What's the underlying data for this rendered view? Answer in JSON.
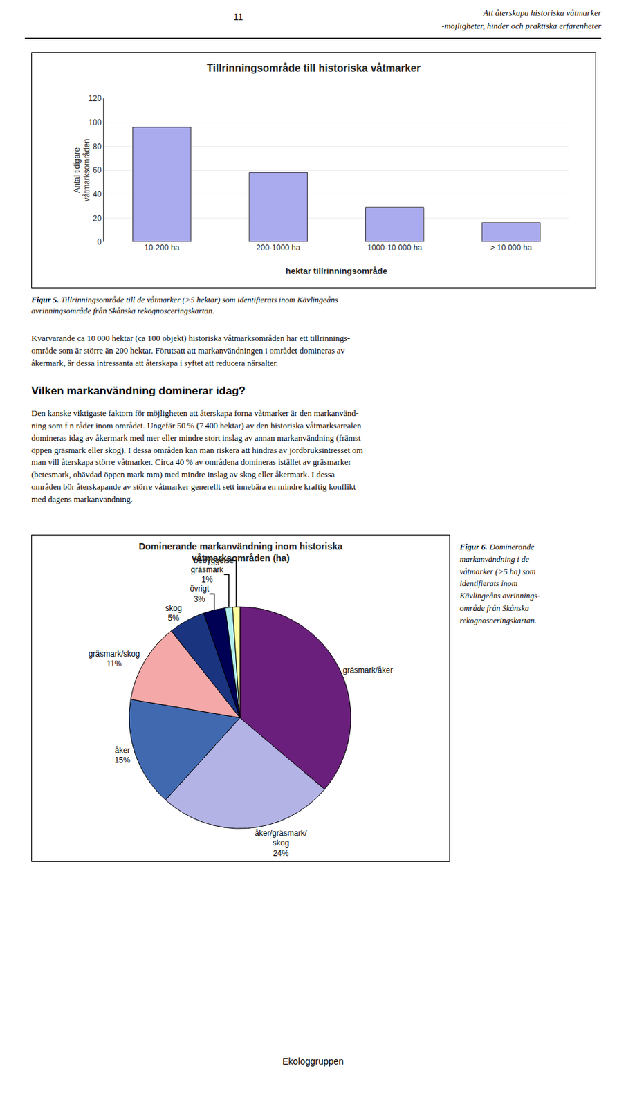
{
  "page_number": "11",
  "header_title": "Att återskapa historiska våtmarker",
  "header_subtitle": "-möjligheter, hinder och praktiska erfarenheter",
  "captions": [
    {
      "label": "Figur 5.",
      "text": "Tillrinningsområde till de våtmarker (>5 hektar) som identifierats inom Kävlingeåns\navrinningsområde från Skånska rekognosceringskartan."
    },
    {
      "label": "Figur 6.",
      "text": "Dominerande\nmarkanvändning i de\nvåtmarker (>5 ha) som\nidentifierats inom\nKävlingeåns avrinnings-\nområde från Skånska\nrekognosceringskartan."
    }
  ],
  "body_texts": [
    "Kvarvarande ca 10 000 hektar (ca 100 objekt) historiska våtmarksområden har ett tillrinnings-\nområde som är större än 200 hektar. Förutsatt att markanvändningen i området domineras av\nåkermark, är dessa intressanta att återskapa i syftet att reducera närsalter.",
    "Den kanske viktigaste faktorn för möjligheten att återskapa forna våtmarker är den markanvänd-\nning som f n råder inom området. Ungefär 50 % (7 400 hektar) av den historiska våtmarksarealen\ndomineras idag av åkermark med mer eller mindre stort inslag av annan markanvändning (främst\nöppen gräsmark eller skog). I dessa områden kan man riskera att hindras av jordbruksintresset om\nman vill återskapa större våtmarker. Circa 40 % av områdena domineras istället av gräsmarker\n(betesmark, ohävdad öppen mark mm) med mindre inslag av skog eller åkermark. I dessa\nområden bör återskapande av större våtmarker generellt sett innebära en mindre kraftig konflikt\nmed dagens markanvändning."
  ],
  "section_title": "Vilken markanvändning dominerar idag?",
  "footer": "Ekologgruppen",
  "chart_data": [
    {
      "type": "bar",
      "title": "Tillrinningsområde till historiska våtmarker",
      "categories": [
        "10-200 ha",
        "200-1000 ha",
        "1000-10 000 ha",
        "> 10 000 ha"
      ],
      "values": [
        96,
        58,
        29,
        16
      ],
      "color": "#aaaaee",
      "xlabel": "hektar tillrinningsområde",
      "ylabel": "Antal tidigare\nvåtmarksområden",
      "ylim": [
        0,
        120
      ],
      "yticks": [
        0,
        20,
        40,
        60,
        80,
        100,
        120
      ],
      "grid": true
    },
    {
      "type": "pie",
      "title": "Dominerande markanvändning inom historiska\nvåtmarksområden (ha)",
      "categories": [
        "gräsmark/åker",
        "åker/gräsmark/\nskog",
        "åker",
        "gräsmark/skog",
        "skog",
        "övrigt",
        "gräsmark",
        "bebyggelse"
      ],
      "values": [
        34,
        24,
        15,
        11,
        5,
        3,
        1,
        1
      ],
      "value_labels": [
        null,
        "24%",
        "15%",
        "11%",
        "5%",
        "3%",
        "1%",
        null
      ],
      "colors": [
        "#6b1f7c",
        "#b3b3e6",
        "#4169b0",
        "#f4a8a8",
        "#1a3480",
        "#000055",
        "#b3f0f0",
        "#ffffa0"
      ]
    }
  ]
}
